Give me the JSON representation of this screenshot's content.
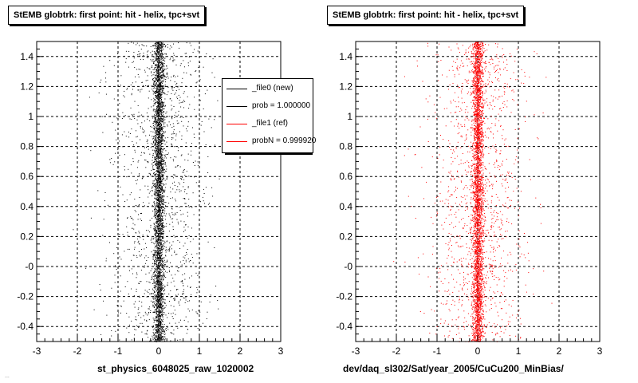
{
  "canvas": {
    "background": "#ffffff"
  },
  "footer_note": "...",
  "chart_data": [
    {
      "type": "scatter",
      "title": "StEMB globtrk: first point: hit - helix, tpc+svt",
      "xlabel": "st_physics_6048025_raw_1020002",
      "ylabel": "",
      "xlim": [
        -3,
        3
      ],
      "ylim": [
        -0.5,
        1.5
      ],
      "x_ticks": [
        "-3",
        "-2",
        "-1",
        "0",
        "1",
        "2",
        "3"
      ],
      "y_ticks": [
        "-0.4",
        "-0.2",
        "-0",
        "0.2",
        "0.4",
        "0.6",
        "0.8",
        "1",
        "1.2",
        "1.4"
      ],
      "grid": true,
      "marker_color": "#000000",
      "distribution": {
        "core_center": 0.0,
        "core_sigma": 0.07,
        "halo_sigma": 0.6
      },
      "legend": {
        "placement": "top-right",
        "entries": [
          {
            "label": "_file0 (new)",
            "color": "#000000"
          },
          {
            "label": "prob = 1.000000",
            "color": "#000000"
          },
          {
            "label": "_file1 (ref)",
            "color": "#ff0000"
          },
          {
            "label": "probN = 0.999920",
            "color": "#ff0000"
          }
        ]
      }
    },
    {
      "type": "scatter",
      "title": "StEMB globtrk: first point: hit - helix, tpc+svt",
      "xlabel": "dev/daq_sl302/Sat/year_2005/CuCu200_MinBias/",
      "ylabel": "",
      "xlim": [
        -3,
        3
      ],
      "ylim": [
        -0.5,
        1.5
      ],
      "x_ticks": [
        "-3",
        "-2",
        "-1",
        "0",
        "1",
        "2",
        "3"
      ],
      "y_ticks": [
        "-0.4",
        "-0.2",
        "-0",
        "0.2",
        "0.4",
        "0.6",
        "0.8",
        "1",
        "1.2",
        "1.4"
      ],
      "grid": true,
      "marker_color": "#ff0000",
      "distribution": {
        "core_center": 0.0,
        "core_sigma": 0.07,
        "halo_sigma": 0.6
      }
    }
  ]
}
